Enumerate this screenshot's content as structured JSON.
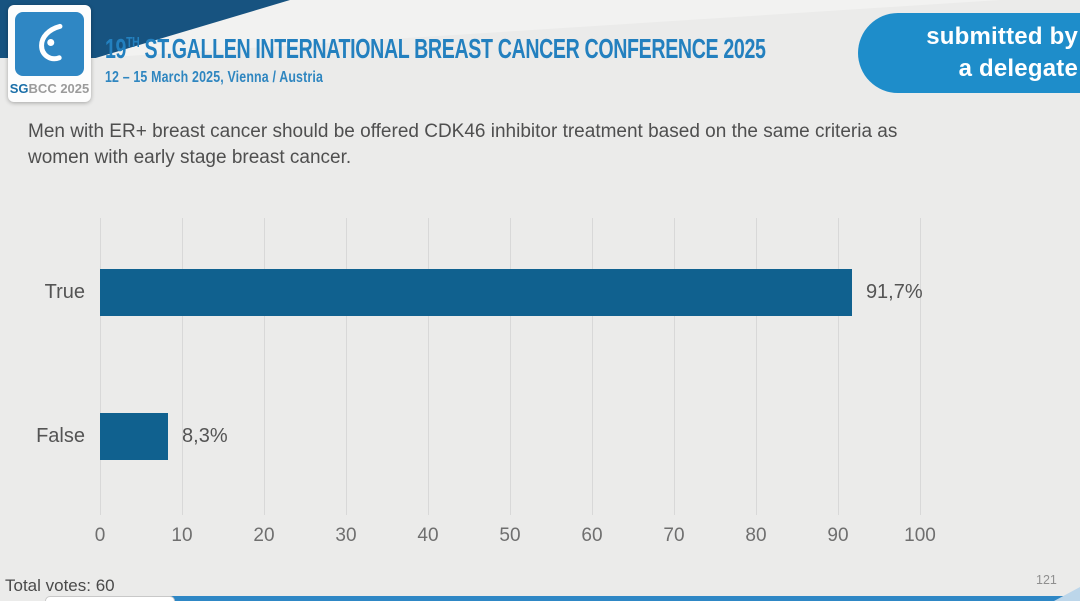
{
  "header": {
    "logo": {
      "sg": "SG",
      "rest": "BCC 2025",
      "icon": "sgbcc-ribbon-icon"
    },
    "title_number": "19",
    "title_ordinal": "TH",
    "title_main": " ST.GALLEN INTERNATIONAL BREAST CANCER CONFERENCE 2025",
    "subtitle": "12 – 15 March 2025, Vienna / Austria",
    "badge_line1": "submitted by",
    "badge_line2": "a delegate"
  },
  "question": "Men with ER+ breast cancer should be offered CDK46 inhibitor treatment based on the same criteria as women with early stage breast cancer.",
  "chart_data": {
    "type": "bar",
    "orientation": "horizontal",
    "categories": [
      "True",
      "False"
    ],
    "values": [
      91.7,
      8.3
    ],
    "value_labels": [
      "91,7%",
      "8,3%"
    ],
    "xlim": [
      0,
      100
    ],
    "xticks": [
      0,
      10,
      20,
      30,
      40,
      50,
      60,
      70,
      80,
      90,
      100
    ],
    "grid": true,
    "legend": false,
    "title": "",
    "xlabel": "",
    "ylabel": "",
    "bar_color": "#10618f"
  },
  "footer": {
    "total_votes": "Total votes: 60",
    "page_number": "121"
  },
  "colors": {
    "accent_blue": "#1e8dca",
    "title_blue": "#2380bf",
    "navy_wedge": "#175380",
    "logo_blue": "#2f87c4",
    "bar_blue": "#10618f",
    "grid_gray": "#d8d8d8",
    "text_gray": "#4f4f4f"
  }
}
